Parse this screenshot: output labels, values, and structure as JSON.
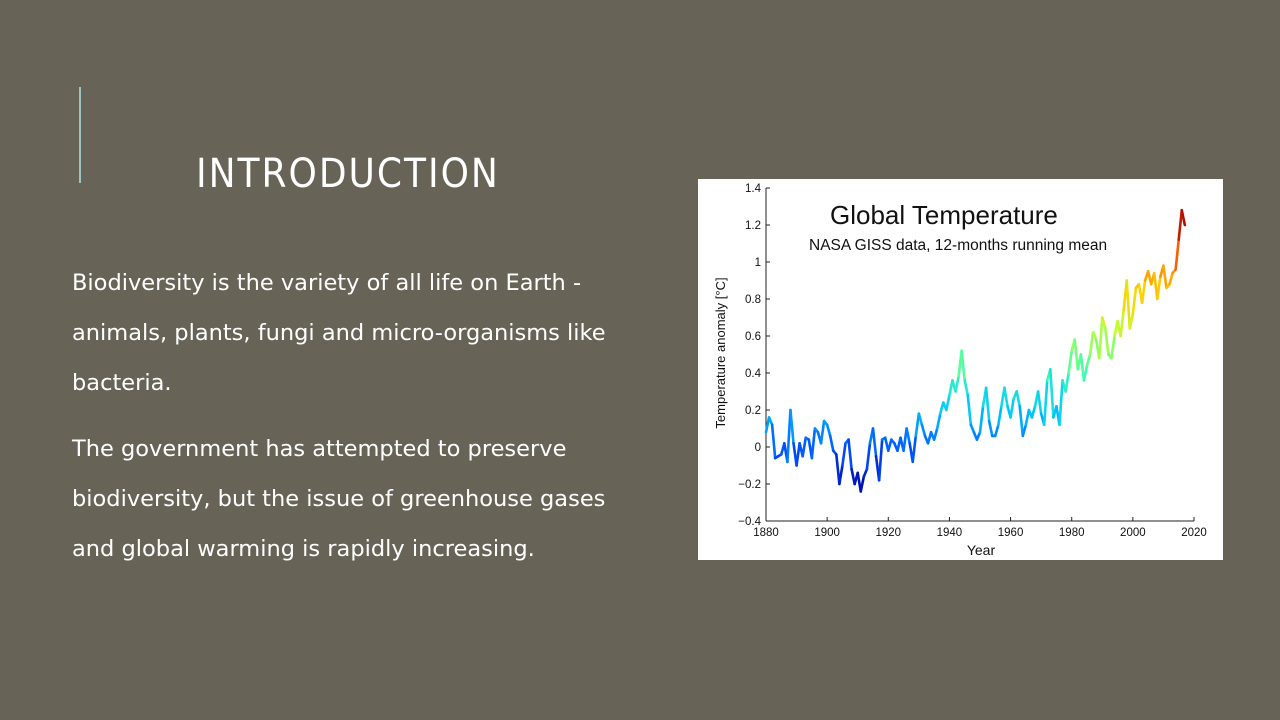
{
  "slide": {
    "title": "Introduction",
    "paragraphs": [
      "Biodiversity is the variety of all life on Earth - animals, plants, fungi and micro-organisms like bacteria.",
      "The government has attempted to preserve biodiversity, but the issue of greenhouse gases and global warming is rapidly increasing."
    ]
  },
  "colors": {
    "background": "#676357",
    "accent": "#9fc3c1",
    "text": "#ffffff"
  },
  "chart_data": {
    "type": "line",
    "title": "Global Temperature",
    "subtitle": "NASA GISS data, 12-months running mean",
    "xlabel": "Year",
    "ylabel": "Temperature anomaly [°C]",
    "xlim": [
      1880,
      2020
    ],
    "ylim": [
      -0.4,
      1.4
    ],
    "xticks": [
      "1880",
      "1900",
      "1920",
      "1940",
      "1960",
      "1980",
      "2000",
      "2020"
    ],
    "yticks": [
      "−0.4",
      "−0.2",
      "0",
      "0.2",
      "0.4",
      "0.6",
      "0.8",
      "1",
      "1.2",
      "1.4"
    ],
    "grid": false,
    "colormap": [
      "#0000a0",
      "#0050ff",
      "#00c8ff",
      "#40ffb0",
      "#c0ff30",
      "#ffd000",
      "#ff5000",
      "#a00000"
    ],
    "series": [
      {
        "x": [
          1880,
          1881,
          1882,
          1883,
          1884,
          1885,
          1886,
          1887,
          1888,
          1889,
          1890,
          1891,
          1892,
          1893,
          1894,
          1895,
          1896,
          1897,
          1898,
          1899,
          1900,
          1901,
          1902,
          1903,
          1904,
          1905,
          1906,
          1907,
          1908,
          1909,
          1910,
          1911,
          1912,
          1913,
          1914,
          1915,
          1916,
          1917,
          1918,
          1919,
          1920,
          1921,
          1922,
          1923,
          1924,
          1925,
          1926,
          1927,
          1928,
          1929,
          1930,
          1931,
          1932,
          1933,
          1934,
          1935,
          1936,
          1937,
          1938,
          1939,
          1940,
          1941,
          1942,
          1943,
          1944,
          1945,
          1946,
          1947,
          1948,
          1949,
          1950,
          1951,
          1952,
          1953,
          1954,
          1955,
          1956,
          1957,
          1958,
          1959,
          1960,
          1961,
          1962,
          1963,
          1964,
          1965,
          1966,
          1967,
          1968,
          1969,
          1970,
          1971,
          1972,
          1973,
          1974,
          1975,
          1976,
          1977,
          1978,
          1979,
          1980,
          1981,
          1982,
          1983,
          1984,
          1985,
          1986,
          1987,
          1988,
          1989,
          1990,
          1991,
          1992,
          1993,
          1994,
          1995,
          1996,
          1997,
          1998,
          1999,
          2000,
          2001,
          2002,
          2003,
          2004,
          2005,
          2006,
          2007,
          2008,
          2009,
          2010,
          2011,
          2012,
          2013,
          2014,
          2015,
          2016,
          2017
        ],
        "y": [
          0.08,
          0.16,
          0.12,
          -0.06,
          -0.05,
          -0.04,
          0.02,
          -0.08,
          0.2,
          0.02,
          -0.1,
          0.02,
          -0.05,
          0.05,
          0.04,
          -0.06,
          0.1,
          0.08,
          0.02,
          0.14,
          0.12,
          0.06,
          -0.02,
          -0.04,
          -0.2,
          -0.1,
          0.02,
          0.04,
          -0.12,
          -0.2,
          -0.14,
          -0.24,
          -0.16,
          -0.12,
          0.02,
          0.1,
          -0.05,
          -0.18,
          0.04,
          0.05,
          -0.02,
          0.04,
          0.02,
          -0.02,
          0.05,
          -0.02,
          0.1,
          0.02,
          -0.08,
          0.06,
          0.18,
          0.12,
          0.06,
          0.02,
          0.08,
          0.04,
          0.1,
          0.18,
          0.24,
          0.2,
          0.28,
          0.36,
          0.3,
          0.38,
          0.52,
          0.36,
          0.28,
          0.12,
          0.08,
          0.04,
          0.08,
          0.22,
          0.32,
          0.14,
          0.06,
          0.06,
          0.12,
          0.22,
          0.32,
          0.22,
          0.16,
          0.26,
          0.3,
          0.22,
          0.06,
          0.12,
          0.2,
          0.16,
          0.22,
          0.3,
          0.18,
          0.12,
          0.36,
          0.42,
          0.16,
          0.22,
          0.12,
          0.36,
          0.3,
          0.4,
          0.52,
          0.58,
          0.42,
          0.5,
          0.36,
          0.44,
          0.5,
          0.62,
          0.58,
          0.48,
          0.7,
          0.64,
          0.5,
          0.48,
          0.6,
          0.68,
          0.6,
          0.74,
          0.9,
          0.64,
          0.72,
          0.86,
          0.88,
          0.78,
          0.9,
          0.95,
          0.88,
          0.94,
          0.8,
          0.92,
          0.98,
          0.86,
          0.88,
          0.94,
          0.96,
          1.12,
          1.28,
          1.2
        ]
      }
    ]
  }
}
